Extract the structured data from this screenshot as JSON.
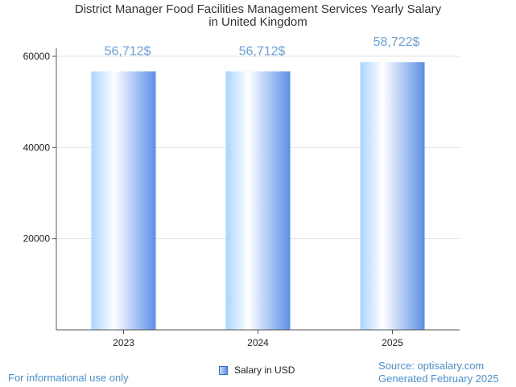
{
  "chart_data": {
    "type": "bar",
    "title_lines": [
      "District Manager Food Facilities Management Services Yearly Salary",
      "in United Kingdom"
    ],
    "categories": [
      "2023",
      "2024",
      "2025"
    ],
    "series": [
      {
        "name": "Salary in USD",
        "values": [
          56712,
          56712,
          58722
        ]
      }
    ],
    "data_labels": [
      "56,712$",
      "56,712$",
      "58,722$"
    ],
    "ylim": [
      0,
      60000
    ],
    "yticks": [
      20000,
      40000,
      60000
    ],
    "ytick_labels": [
      "20000",
      "40000",
      "60000"
    ],
    "grid": true,
    "legend_position": "bottom"
  },
  "footer": {
    "disclaimer": "For informational use only",
    "source": "Source: optisalary.com",
    "generated": "Generated February 2025"
  },
  "colors": {
    "bar_light": "#ddeeff",
    "bar_dark": "#5b8fe8",
    "label": "#6a9fe0"
  }
}
